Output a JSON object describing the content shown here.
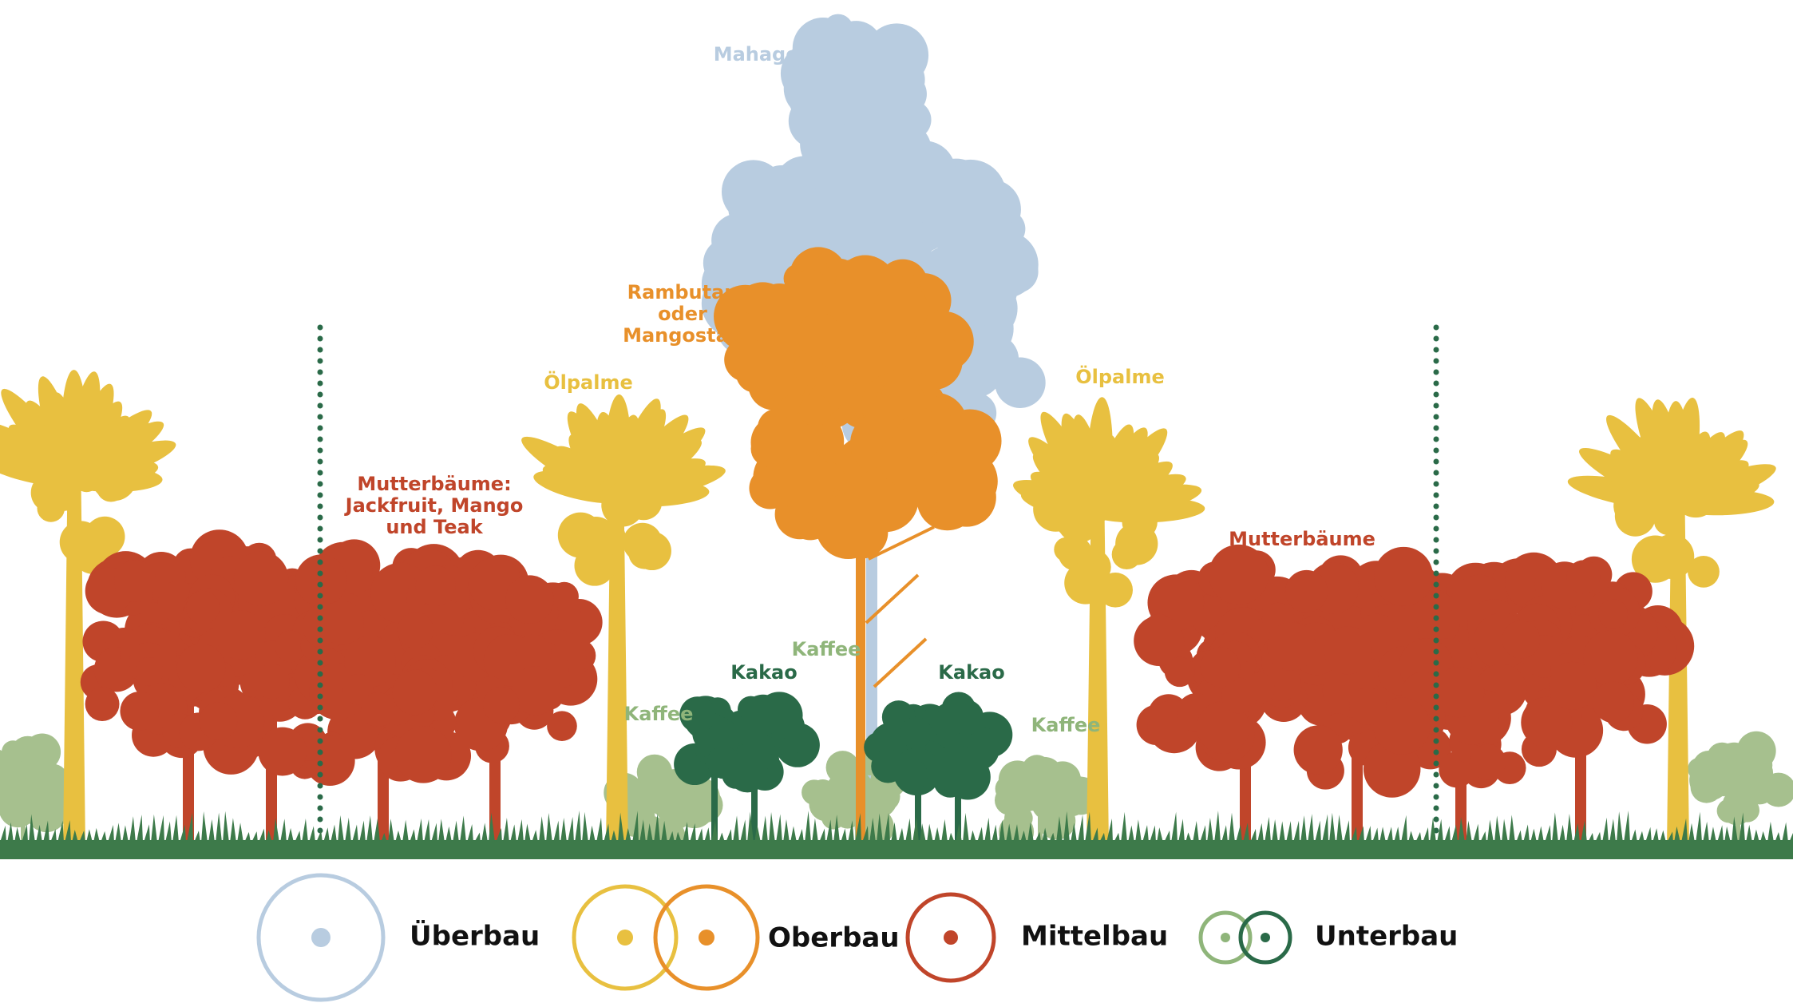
{
  "labels": {
    "mahagonie": "Mahagonie",
    "rambutan": [
      "Rambutan",
      "oder",
      "Mangostan"
    ],
    "oelpalme_left": "Ölpalme",
    "oelpalme_right": "Ölpalme",
    "mutter_left": [
      "Mutterbäume:",
      "Jackfruit, Mango",
      "und Teak"
    ],
    "mutter_right": "Mutterbäume",
    "kaffee_top": "Kaffee",
    "kaffee_left": "Kaffee",
    "kaffee_right": "Kaffee",
    "kakao_left": "Kakao",
    "kakao_right": "Kakao"
  },
  "legend": [
    {
      "label": "Überbau"
    },
    {
      "label": "Oberbau"
    },
    {
      "label": "Mittelbau"
    },
    {
      "label": "Unterbau"
    }
  ]
}
